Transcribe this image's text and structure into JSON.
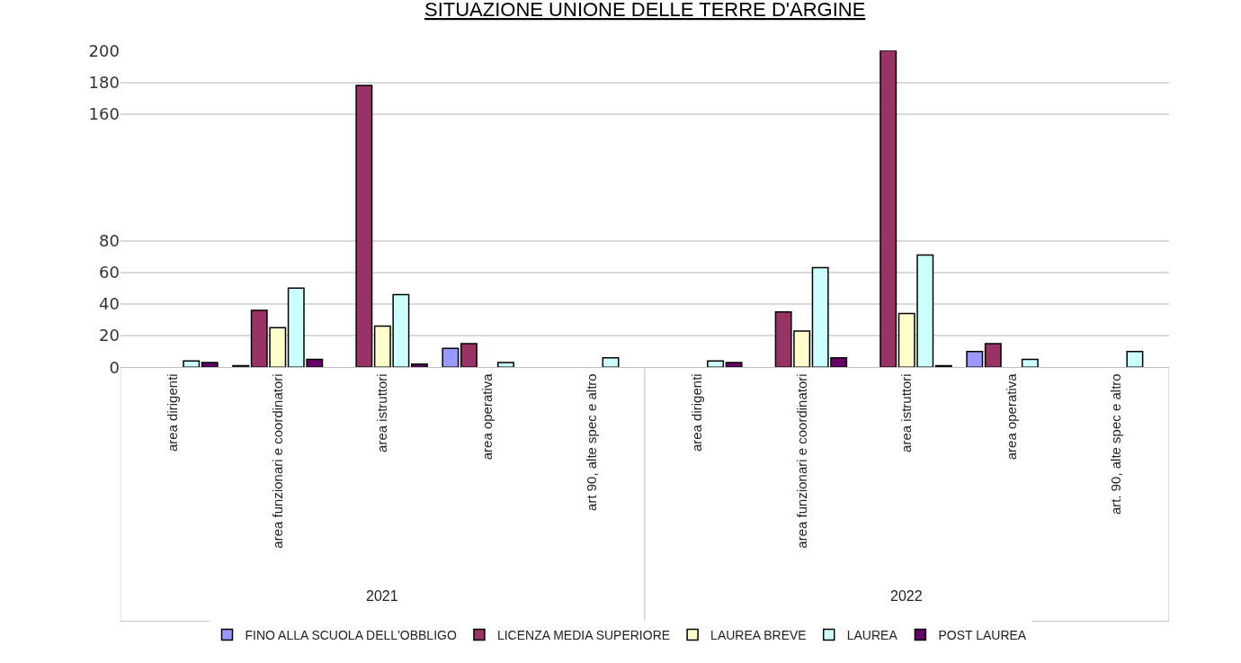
{
  "chart_data": {
    "type": "bar",
    "title": "SITUAZIONE UNIONE DELLE TERRE D'ARGINE",
    "categories": [
      "area dirigenti",
      "area funzionari e coordinatori",
      "area istruttori",
      "area operativa",
      "art 90, alte spec e altro",
      "area dirigenti",
      "area funzionari e coordinatori",
      "area istruttori",
      "area operativa",
      "art. 90, alte spec e altro"
    ],
    "series": [
      {
        "name": "FINO ALLA SCUOLA DELL'OBBLIGO",
        "color": "#9999ff",
        "values": [
          null,
          1,
          null,
          12,
          null,
          null,
          null,
          null,
          10,
          null
        ]
      },
      {
        "name": "LICENZA MEDIA SUPERIORE",
        "color": "#993366",
        "values": [
          null,
          36,
          178,
          15,
          null,
          null,
          35,
          200,
          15,
          null
        ]
      },
      {
        "name": "LAUREA BREVE",
        "color": "#ffffcc",
        "values": [
          null,
          25,
          26,
          null,
          null,
          null,
          23,
          34,
          null,
          null
        ]
      },
      {
        "name": "LAUREA",
        "color": "#ccffff",
        "values": [
          4,
          50,
          46,
          3,
          6,
          4,
          63,
          71,
          5,
          10
        ]
      },
      {
        "name": "POST LAUREA",
        "color": "#660066",
        "values": [
          3,
          5,
          2,
          null,
          null,
          3,
          6,
          1,
          null,
          null
        ]
      }
    ],
    "ylim": [
      0,
      200
    ],
    "yticks": [
      0,
      20,
      40,
      60,
      80,
      160,
      180,
      200
    ],
    "grid": "y",
    "legend": "bottom",
    "annotations": [
      "2021",
      "2022"
    ]
  }
}
